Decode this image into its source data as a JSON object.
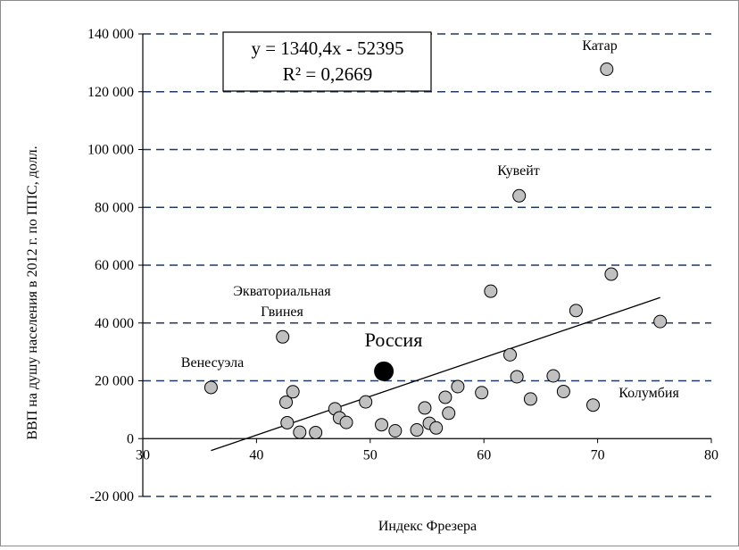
{
  "chart_data": {
    "type": "scatter",
    "xlabel": "Индекс Фрезера",
    "ylabel": "ВВП на душу населения в 2012 г. по ППС, долл.",
    "xlim": [
      30,
      80
    ],
    "ylim": [
      -20000,
      140000
    ],
    "x_ticks": [
      30,
      40,
      50,
      60,
      70,
      80
    ],
    "y_ticks": [
      -20000,
      0,
      20000,
      40000,
      60000,
      80000,
      100000,
      120000,
      140000
    ],
    "x_tick_labels": [
      "30",
      "40",
      "50",
      "60",
      "70",
      "80"
    ],
    "y_tick_labels": [
      "-20 000",
      "0",
      "20 000",
      "40 000",
      "60 000",
      "80 000",
      "100 000",
      "120 000",
      "140 000"
    ],
    "grid": "horizontal dashed",
    "colors": {
      "points": "#c0c0c0",
      "russia": "#000000",
      "grid": "#1f3864",
      "trend": "#000000"
    },
    "trendline": {
      "slope": 1340.4,
      "intercept": -52395,
      "x_range": [
        36,
        75.5
      ],
      "equation_text": "y = 1340,4x - 52395",
      "r2_text": "R² = 0,2669"
    },
    "highlight": {
      "label": "Россия",
      "x": 51.2,
      "y": 23300
    },
    "points": [
      {
        "x": 36.0,
        "y": 17700
      },
      {
        "x": 42.3,
        "y": 35200
      },
      {
        "x": 42.6,
        "y": 12600
      },
      {
        "x": 42.7,
        "y": 5500
      },
      {
        "x": 43.2,
        "y": 16200
      },
      {
        "x": 43.8,
        "y": 2200
      },
      {
        "x": 45.2,
        "y": 2100
      },
      {
        "x": 46.9,
        "y": 10300
      },
      {
        "x": 47.3,
        "y": 7200
      },
      {
        "x": 47.9,
        "y": 5600
      },
      {
        "x": 49.6,
        "y": 12700
      },
      {
        "x": 51.0,
        "y": 4800
      },
      {
        "x": 52.2,
        "y": 2700
      },
      {
        "x": 54.1,
        "y": 3000
      },
      {
        "x": 54.8,
        "y": 10600
      },
      {
        "x": 55.2,
        "y": 5300
      },
      {
        "x": 55.8,
        "y": 3700
      },
      {
        "x": 56.6,
        "y": 14300
      },
      {
        "x": 56.9,
        "y": 8800
      },
      {
        "x": 57.7,
        "y": 18000
      },
      {
        "x": 59.8,
        "y": 15900
      },
      {
        "x": 60.6,
        "y": 51000
      },
      {
        "x": 62.3,
        "y": 29000
      },
      {
        "x": 62.9,
        "y": 21400
      },
      {
        "x": 63.1,
        "y": 84000
      },
      {
        "x": 64.1,
        "y": 13700
      },
      {
        "x": 66.1,
        "y": 21700
      },
      {
        "x": 67.0,
        "y": 16300
      },
      {
        "x": 68.1,
        "y": 44300
      },
      {
        "x": 69.6,
        "y": 11600
      },
      {
        "x": 70.8,
        "y": 127800
      },
      {
        "x": 71.2,
        "y": 56900
      },
      {
        "x": 75.5,
        "y": 40500
      }
    ],
    "annotations": [
      {
        "text": "Катар"
      },
      {
        "text": "Кувейт"
      },
      {
        "text": "Экваториальная"
      },
      {
        "text": "Гвинея"
      },
      {
        "text": "Венесуэла"
      },
      {
        "text": "Колумбия"
      }
    ]
  }
}
